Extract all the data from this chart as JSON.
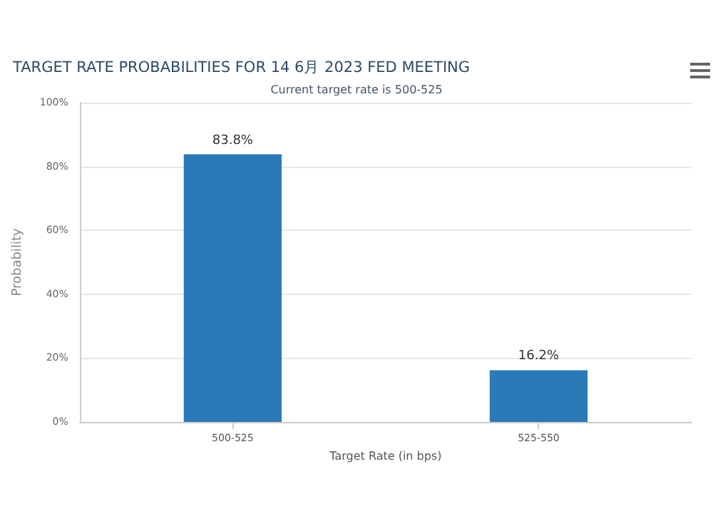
{
  "chart_data": {
    "type": "bar",
    "title": "TARGET RATE PROBABILITIES FOR 14 6月 2023 FED MEETING",
    "subtitle": "Current target rate is 500-525",
    "xlabel": "Target Rate (in bps)",
    "ylabel": "Probability",
    "categories": [
      "500-525",
      "525-550"
    ],
    "series": [
      {
        "color": "#2a7ab8",
        "values": [
          83.8,
          16.2
        ],
        "value_labels": [
          "83.8%",
          "16.2%"
        ]
      }
    ],
    "ylim": [
      0,
      100
    ],
    "yticks": [
      {
        "value": 0,
        "label": "0%"
      },
      {
        "value": 20,
        "label": "20%"
      },
      {
        "value": 40,
        "label": "40%"
      },
      {
        "value": 60,
        "label": "60%"
      },
      {
        "value": 80,
        "label": "80%"
      },
      {
        "value": 100,
        "label": "100%"
      }
    ],
    "grid": "y"
  }
}
